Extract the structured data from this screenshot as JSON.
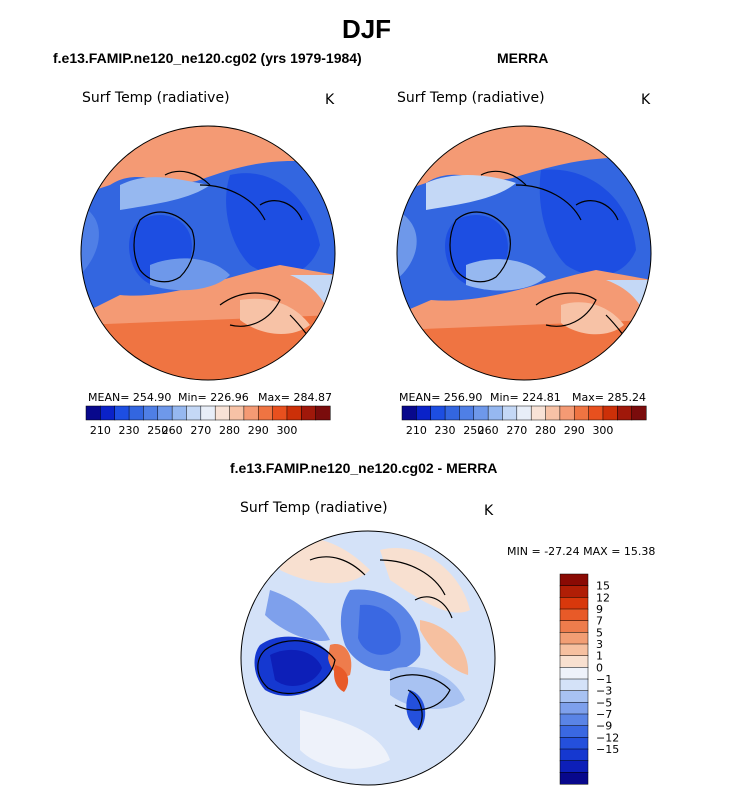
{
  "page_title": "DJF",
  "colors": {
    "scale": [
      "#08088c",
      "#0a22c8",
      "#1d4ee2",
      "#3366e0",
      "#4f7fe6",
      "#6e98ea",
      "#96b8f0",
      "#c4d8f6",
      "#e8eef8",
      "#f8e2d6",
      "#f7c2a6",
      "#f49a74",
      "#ef7442",
      "#e8501e",
      "#cc3008",
      "#a0180a",
      "#7a0c0c"
    ],
    "diff_scale": [
      "#08088c",
      "#0d1fb8",
      "#1538d0",
      "#2450dc",
      "#3a68e2",
      "#5a84e6",
      "#7ea0ec",
      "#a8c2f2",
      "#d4e2f8",
      "#eef2fa",
      "#f8e0d0",
      "#f6c0a0",
      "#f29e74",
      "#ee7c4c",
      "#e85a28",
      "#d8380c",
      "#b01e06",
      "#8a0a04"
    ],
    "coast": "#000000"
  },
  "chart_data": [
    {
      "type": "heatmap",
      "title": "f.e13.FAMIP.ne120_ne120.cg02 (yrs 1979-1984)",
      "variable": "Surf Temp (radiative)",
      "units": "K",
      "mean_label": "MEAN=",
      "mean": "254.90",
      "min_label": "Min=",
      "min": "226.96",
      "max_label": "Max=",
      "max": "284.87",
      "colorbar_ticks": [
        "210",
        "230",
        "250",
        "260",
        "270",
        "280",
        "290",
        "300"
      ]
    },
    {
      "type": "heatmap",
      "title": "MERRA",
      "variable": "Surf Temp (radiative)",
      "units": "K",
      "mean_label": "MEAN=",
      "mean": "256.90",
      "min_label": "Min=",
      "min": "224.81",
      "max_label": "Max=",
      "max": "285.24",
      "colorbar_ticks": [
        "210",
        "230",
        "250",
        "260",
        "270",
        "280",
        "290",
        "300"
      ]
    },
    {
      "type": "heatmap",
      "title": "f.e13.FAMIP.ne120_ne120.cg02 - MERRA",
      "variable": "Surf Temp (radiative)",
      "units": "K",
      "min_label": "MIN =",
      "min": "-27.24",
      "max_label": "MAX =",
      "max": "15.38",
      "colorbar_ticks": [
        "15",
        "12",
        "9",
        "7",
        "5",
        "3",
        "1",
        "0",
        "−1",
        "−3",
        "−5",
        "−7",
        "−9",
        "−12",
        "−15"
      ]
    }
  ]
}
